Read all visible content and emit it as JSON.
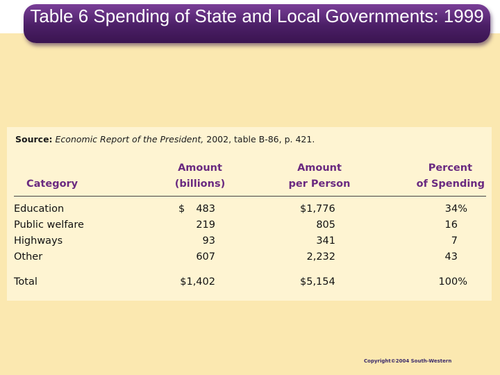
{
  "slide": {
    "title": "Table 6 Spending of State and Local Governments: 1999",
    "copyright": "Copyright©2004  South-Western"
  },
  "source": {
    "label": "Source:",
    "publication": "Economic Report of the President,",
    "detail": " 2002, table B-86, p. 421."
  },
  "table": {
    "headers": {
      "category": "Category",
      "amount_line1": "Amount",
      "amount_line2": "(billions)",
      "per_person_line1": "Amount",
      "per_person_line2": "per Person",
      "percent_line1": "Percent",
      "percent_line2": "of Spending"
    },
    "rows": [
      {
        "category": "Education",
        "amount_prefix": "$",
        "amount": "483",
        "per_person": "$1,776",
        "percent": "34%"
      },
      {
        "category": "Public welfare",
        "amount_prefix": "",
        "amount": "219",
        "per_person": "805",
        "percent": "16"
      },
      {
        "category": "Highways",
        "amount_prefix": "",
        "amount": "93",
        "per_person": "341",
        "percent": "7"
      },
      {
        "category": "Other",
        "amount_prefix": "",
        "amount": "607",
        "per_person": "2,232",
        "percent": "43"
      }
    ],
    "total": {
      "category": "Total",
      "amount": "$1,402",
      "per_person": "$5,154",
      "percent": "100%"
    }
  }
}
